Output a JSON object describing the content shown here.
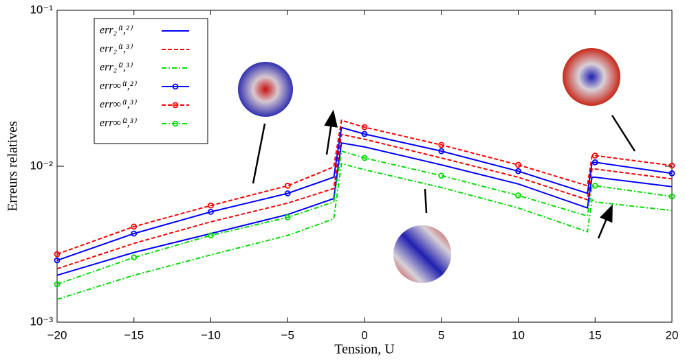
{
  "chart_data": {
    "type": "line",
    "xlabel": "Tension, U",
    "ylabel": "Erreurs relatives",
    "log_y": true,
    "legend": "upper left",
    "x": [
      -20,
      -15,
      -10,
      -5,
      -2,
      -1.5,
      0,
      5,
      10,
      14.5,
      14.8,
      15,
      20
    ],
    "xlim": [
      -20,
      20
    ],
    "xticks": [
      {
        "value": -20,
        "label": "−20"
      },
      {
        "value": -15,
        "label": "−15"
      },
      {
        "value": -10,
        "label": "−10"
      },
      {
        "value": -5,
        "label": "−5"
      },
      0,
      5,
      10,
      15,
      20
    ],
    "ylim": [
      0.001,
      0.1
    ],
    "yticks": [
      {
        "value": 0.001,
        "label": "10⁻³"
      },
      {
        "value": 0.01,
        "label": "10⁻²"
      },
      {
        "value": 0.1,
        "label": "10⁻¹"
      }
    ],
    "series": [
      {
        "name": "err₂⁽¹,²⁾",
        "color": "#0000ff",
        "linestyle": "solid",
        "values": [
          0.002,
          0.0028,
          0.0037,
          0.0049,
          0.0062,
          0.0141,
          0.0133,
          0.0102,
          0.0077,
          0.0054,
          0.0085,
          0.0085,
          0.0074
        ]
      },
      {
        "name": "err₂⁽¹,³⁾",
        "color": "#ff0000",
        "linestyle": "dashed",
        "values": [
          0.0022,
          0.0032,
          0.0044,
          0.0058,
          0.0072,
          0.016,
          0.0149,
          0.0113,
          0.0085,
          0.0061,
          0.0096,
          0.0096,
          0.0083
        ]
      },
      {
        "name": "err₂⁽²,³⁾",
        "color": "#00dd00",
        "linestyle": "dashdot",
        "values": [
          0.0014,
          0.002,
          0.0027,
          0.0036,
          0.0046,
          0.0104,
          0.0095,
          0.0073,
          0.0054,
          0.0038,
          0.0061,
          0.0059,
          0.0052
        ]
      },
      {
        "name": "err∞⁽¹,²⁾",
        "color": "#0000ff",
        "linestyle": "solid",
        "marker": "o",
        "values": [
          0.00249,
          0.0037,
          0.0051,
          0.0067,
          0.0085,
          0.0177,
          0.0161,
          0.0125,
          0.0093,
          0.0067,
          0.0105,
          0.0106,
          0.009
        ]
      },
      {
        "name": "err∞⁽¹,³⁾",
        "color": "#ff0000",
        "linestyle": "dashed",
        "marker": "o",
        "values": [
          0.00273,
          0.0041,
          0.0056,
          0.0075,
          0.0099,
          0.0197,
          0.0178,
          0.0137,
          0.0102,
          0.0075,
          0.0116,
          0.0117,
          0.0101
        ]
      },
      {
        "name": "err∞⁽²,³⁾",
        "color": "#00dd00",
        "linestyle": "dashdot",
        "marker": "o",
        "values": [
          0.00175,
          0.0026,
          0.0036,
          0.0047,
          0.0059,
          0.0125,
          0.0113,
          0.0087,
          0.0065,
          0.0048,
          0.0074,
          0.0075,
          0.0064
        ]
      }
    ]
  }
}
